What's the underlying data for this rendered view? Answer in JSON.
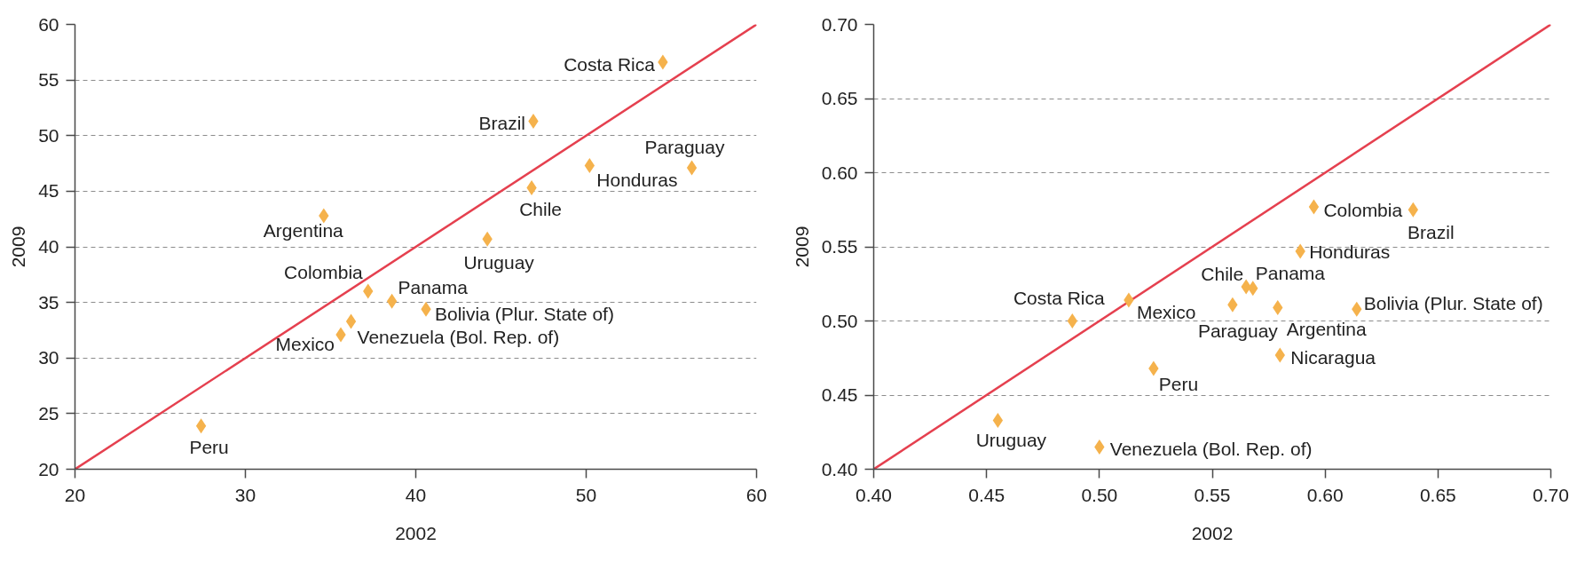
{
  "chart_data": [
    {
      "type": "scatter",
      "xlabel": "2002",
      "ylabel": "2009",
      "xlim": [
        20,
        60
      ],
      "ylim": [
        20,
        60
      ],
      "xticks": [
        20,
        30,
        40,
        50,
        60
      ],
      "yticks": [
        20,
        25,
        30,
        35,
        40,
        45,
        50,
        55,
        60
      ],
      "grid": "y",
      "series": [
        {
          "marker": "diamond",
          "color": "#f5b24c",
          "x": [
            34.6,
            40.6,
            46.9,
            46.8,
            37.2,
            54.5,
            50.2,
            35.6,
            38.6,
            56.2,
            27.4,
            44.2,
            36.2
          ],
          "values": [
            42.8,
            34.4,
            51.3,
            45.3,
            36.0,
            56.6,
            47.3,
            32.1,
            35.1,
            47.1,
            23.9,
            40.7,
            33.3
          ],
          "value_labels": [
            "Argentina",
            "Bolivia (Plur.  State of)",
            "Brazil",
            "Chile",
            "Colombia",
            "Costa Rica",
            "Honduras",
            "Mexico",
            "Panama",
            "Paraguay",
            "Peru",
            "Uruguay",
            "Venezuela (Bol. Rep. of)"
          ]
        },
        {
          "type": "line",
          "color": "#e5404f",
          "x": [
            20,
            60
          ],
          "values": [
            20,
            60
          ]
        }
      ]
    },
    {
      "type": "scatter",
      "xlabel": "2002",
      "ylabel": "2009",
      "xlim": [
        0.4,
        0.7
      ],
      "ylim": [
        0.4,
        0.7
      ],
      "xticks": [
        {
          "value": 0.4,
          "label": "0.40"
        },
        {
          "value": 0.45,
          "label": "0.45"
        },
        {
          "value": 0.5,
          "label": "0.50"
        },
        {
          "value": 0.55,
          "label": "0.55"
        },
        {
          "value": 0.6,
          "label": "0.60"
        },
        {
          "value": 0.65,
          "label": "0.65"
        },
        {
          "value": 0.7,
          "label": "0.70"
        }
      ],
      "yticks": [
        {
          "value": 0.4,
          "label": "0.40"
        },
        {
          "value": 0.45,
          "label": "0.45"
        },
        {
          "value": 0.5,
          "label": "0.50"
        },
        {
          "value": 0.55,
          "label": "0.55"
        },
        {
          "value": 0.6,
          "label": "0.60"
        },
        {
          "value": 0.65,
          "label": "0.65"
        },
        {
          "value": 0.7,
          "label": "0.70"
        }
      ],
      "grid": "y",
      "series": [
        {
          "marker": "diamond",
          "color": "#f5b24c",
          "x": [
            0.579,
            0.614,
            0.639,
            0.565,
            0.595,
            0.488,
            0.589,
            0.513,
            0.58,
            0.568,
            0.559,
            0.524,
            0.455,
            0.5
          ],
          "values": [
            0.509,
            0.508,
            0.575,
            0.523,
            0.577,
            0.5,
            0.547,
            0.514,
            0.477,
            0.522,
            0.511,
            0.468,
            0.433,
            0.415
          ],
          "value_labels": [
            "Argentina",
            "Bolivia (Plur. State of)",
            "Brazil",
            "Chile",
            "Colombia",
            "Costa Rica",
            "Honduras",
            "Mexico",
            "Nicaragua",
            "Panama",
            "Paraguay",
            "Peru",
            "Uruguay",
            "Venezuela (Bol. Rep. of)"
          ]
        },
        {
          "type": "line",
          "color": "#e5404f",
          "x": [
            0.4,
            0.7
          ],
          "values": [
            0.4,
            0.7
          ]
        }
      ]
    }
  ]
}
